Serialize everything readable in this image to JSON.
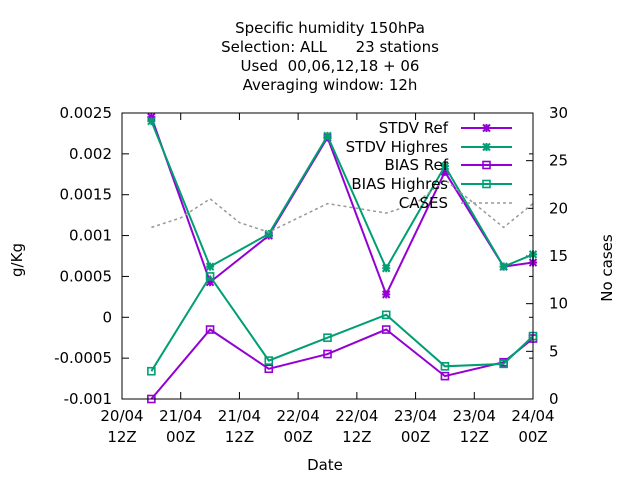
{
  "chart_data": {
    "type": "line",
    "title_lines": [
      "Specific humidity 150hPa",
      "Selection: ALL      23 stations",
      "Used  00,06,12,18 + 06",
      "Averaging window: 12h"
    ],
    "xlabel": "Date",
    "ylabel": "g/Kg",
    "y2label": "No cases",
    "x_ticks": [
      {
        "line1": "20/04",
        "line2": "12Z"
      },
      {
        "line1": "21/04",
        "line2": "00Z"
      },
      {
        "line1": "21/04",
        "line2": "12Z"
      },
      {
        "line1": "22/04",
        "line2": "00Z"
      },
      {
        "line1": "22/04",
        "line2": "12Z"
      },
      {
        "line1": "23/04",
        "line2": "00Z"
      },
      {
        "line1": "23/04",
        "line2": "12Z"
      },
      {
        "line1": "24/04",
        "line2": "00Z"
      }
    ],
    "x_hours_range": [
      0,
      84
    ],
    "ylim": [
      -0.001,
      0.0025
    ],
    "y_ticks": [
      "0.0025",
      "0.002",
      "0.0015",
      "0.001",
      "0.0005",
      "0",
      "-0.0005",
      "-0.001"
    ],
    "y_tick_values": [
      0.0025,
      0.002,
      0.0015,
      0.001,
      0.0005,
      0,
      -0.0005,
      -0.001
    ],
    "y2lim": [
      0,
      30
    ],
    "y2_ticks": [
      0,
      5,
      10,
      15,
      20,
      25,
      30
    ],
    "legend_position": "top-right",
    "series": [
      {
        "name": "STDV Ref",
        "axis": "y1",
        "color": "#9400d3",
        "marker": "star",
        "x_hours": [
          6,
          18,
          30,
          42,
          54,
          66,
          78,
          84
        ],
        "values": [
          0.00245,
          0.00043,
          0.001,
          0.0022,
          0.00028,
          0.00178,
          0.00062,
          0.00067
        ]
      },
      {
        "name": "STDV Highres",
        "axis": "y1",
        "color": "#009e73",
        "marker": "star",
        "x_hours": [
          6,
          18,
          30,
          42,
          54,
          66,
          78,
          84
        ],
        "values": [
          0.0024,
          0.00062,
          0.00102,
          0.00222,
          0.0006,
          0.00185,
          0.00062,
          0.00077
        ]
      },
      {
        "name": "BIAS Ref",
        "axis": "y1",
        "color": "#9400d3",
        "marker": "square",
        "x_hours": [
          6,
          18,
          30,
          42,
          54,
          66,
          78,
          84
        ],
        "values": [
          -0.001,
          -0.00015,
          -0.00063,
          -0.00045,
          -0.00015,
          -0.00072,
          -0.00055,
          -0.00026
        ]
      },
      {
        "name": "BIAS Highres",
        "axis": "y1",
        "color": "#009e73",
        "marker": "square",
        "x_hours": [
          6,
          18,
          30,
          42,
          54,
          66,
          78,
          84
        ],
        "values": [
          -0.00066,
          0.0005,
          -0.00053,
          -0.00025,
          3e-05,
          -0.0006,
          -0.00057,
          -0.00023
        ]
      },
      {
        "name": "CASES",
        "axis": "y2",
        "color": "#999999",
        "marker": "none",
        "dash": true,
        "x_hours": [
          6,
          12,
          18,
          24,
          30,
          36,
          42,
          48,
          54,
          60,
          66,
          72,
          78,
          84
        ],
        "values": [
          18,
          19,
          21,
          18.5,
          17.5,
          19,
          20.5,
          20,
          19.5,
          20.5,
          23,
          20.5,
          18,
          20.5
        ]
      }
    ]
  }
}
